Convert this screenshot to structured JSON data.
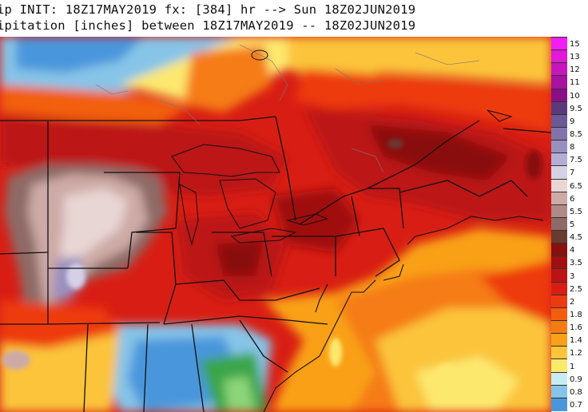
{
  "header": {
    "line1": "ip INIT: 18Z17MAY2019 fx: [384] hr --> Sun 18Z02JUN2019",
    "line2": "ipitation [inches] between 18Z17MAY2019 -- 18Z02JUN2019"
  },
  "colorbar": {
    "labels": [
      "15",
      "13",
      "12",
      "11",
      "10",
      "9.5",
      "9",
      "8.5",
      "8",
      "7.5",
      "7",
      "6.5",
      "6",
      "5.5",
      "5",
      "4.5",
      "4",
      "3.5",
      "3",
      "2.5",
      "2",
      "1.8",
      "1.6",
      "1.4",
      "1.2",
      "1",
      "0.9",
      "0.8",
      "0.7"
    ],
    "colors": [
      "#f01ef0",
      "#e01ad6",
      "#c716bc",
      "#a812a0",
      "#8a0e86",
      "#5a3a7a",
      "#6b5896",
      "#8273ac",
      "#9a90c0",
      "#b4add4",
      "#d6d0e6",
      "#e8d6d4",
      "#cdaaa6",
      "#b08a86",
      "#8e6a66",
      "#6a3a30",
      "#8a0f0f",
      "#a01010",
      "#bc1414",
      "#d81e14",
      "#ee3a10",
      "#f25e10",
      "#f57c12",
      "#f9a018",
      "#fbc43a",
      "#fde86e",
      "#c6ecf4",
      "#86c4e8",
      "#4a96dc"
    ]
  }
}
